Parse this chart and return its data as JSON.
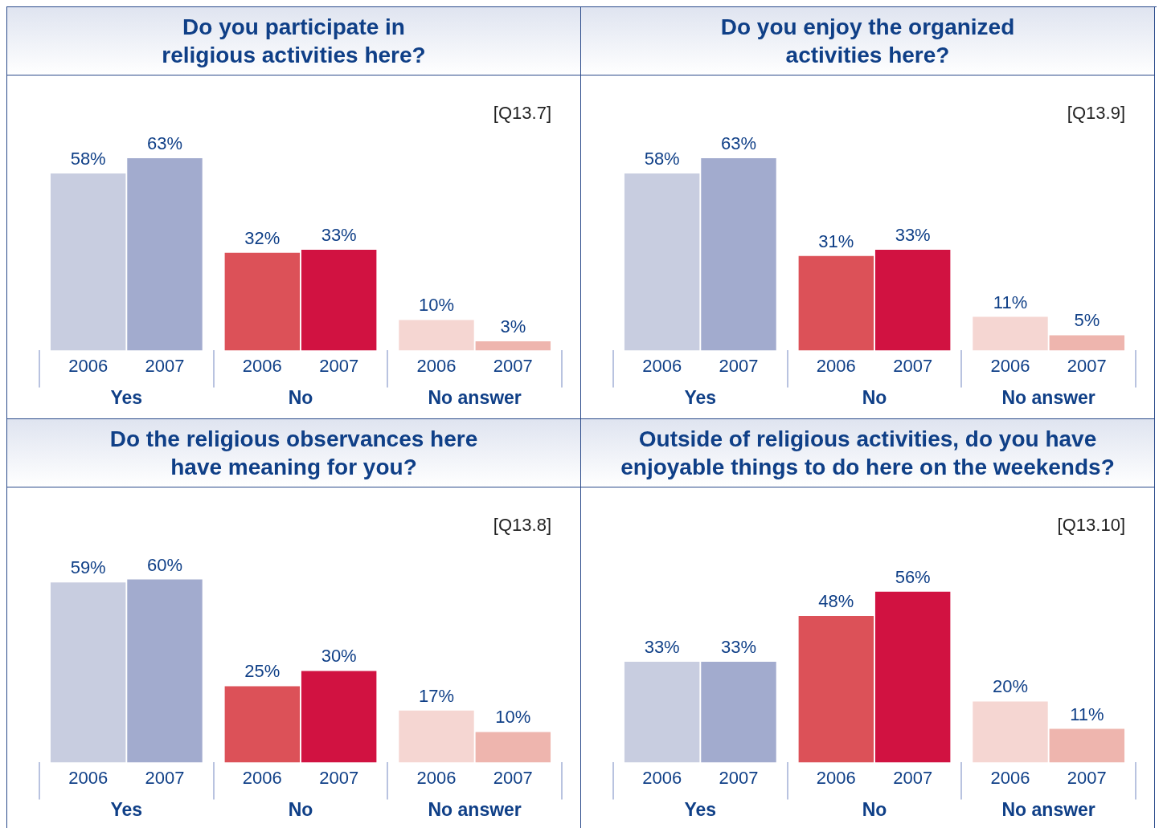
{
  "chart_data": [
    {
      "type": "bar",
      "title": "Do you participate in\nreligious activities here?",
      "annotations": [
        "[Q13.7]"
      ],
      "categories": [
        "Yes",
        "No",
        "No answer"
      ],
      "series": [
        {
          "name": "2006",
          "colors": [
            "#c8cde0",
            "#dc5158",
            "#f5d6d2"
          ],
          "values": [
            58,
            32,
            10
          ],
          "value_labels": [
            "58%",
            "32%",
            "10%"
          ]
        },
        {
          "name": "2007",
          "colors": [
            "#a2abce",
            "#d11241",
            "#eeb5ae"
          ],
          "values": [
            63,
            33,
            3
          ],
          "value_labels": [
            "63%",
            "33%",
            "3%"
          ]
        }
      ]
    },
    {
      "type": "bar",
      "title": "Do you enjoy the organized\nactivities here?",
      "annotations": [
        "[Q13.9]"
      ],
      "categories": [
        "Yes",
        "No",
        "No answer"
      ],
      "series": [
        {
          "name": "2006",
          "colors": [
            "#c8cde0",
            "#dc5158",
            "#f5d6d2"
          ],
          "values": [
            58,
            31,
            11
          ],
          "value_labels": [
            "58%",
            "31%",
            "11%"
          ]
        },
        {
          "name": "2007",
          "colors": [
            "#a2abce",
            "#d11241",
            "#eeb5ae"
          ],
          "values": [
            63,
            33,
            5
          ],
          "value_labels": [
            "63%",
            "33%",
            "5%"
          ]
        }
      ]
    },
    {
      "type": "bar",
      "title": "Do the religious observances here\nhave meaning for you?",
      "annotations": [
        "[Q13.8]"
      ],
      "categories": [
        "Yes",
        "No",
        "No answer"
      ],
      "series": [
        {
          "name": "2006",
          "colors": [
            "#c8cde0",
            "#dc5158",
            "#f5d6d2"
          ],
          "values": [
            59,
            25,
            17
          ],
          "value_labels": [
            "59%",
            "25%",
            "17%"
          ]
        },
        {
          "name": "2007",
          "colors": [
            "#a2abce",
            "#d11241",
            "#eeb5ae"
          ],
          "values": [
            60,
            30,
            10
          ],
          "value_labels": [
            "60%",
            "30%",
            "10%"
          ]
        }
      ]
    },
    {
      "type": "bar",
      "title": "Outside of religious activities, do you have\nenjoyable things to do here on the weekends?",
      "annotations": [
        "[Q13.10]"
      ],
      "categories": [
        "Yes",
        "No",
        "No answer"
      ],
      "series": [
        {
          "name": "2006",
          "colors": [
            "#c8cde0",
            "#dc5158",
            "#f5d6d2"
          ],
          "values": [
            33,
            48,
            20
          ],
          "value_labels": [
            "33%",
            "48%",
            "20%"
          ]
        },
        {
          "name": "2007",
          "colors": [
            "#a2abce",
            "#d11241",
            "#eeb5ae"
          ],
          "values": [
            33,
            56,
            11
          ],
          "value_labels": [
            "33%",
            "56%",
            "11%"
          ]
        }
      ]
    }
  ]
}
